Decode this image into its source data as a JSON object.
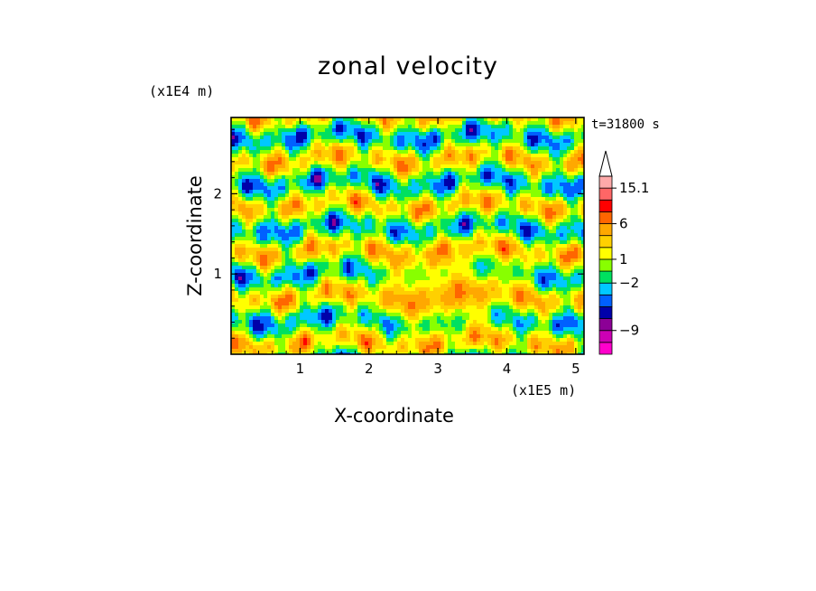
{
  "chart_data": {
    "type": "heatmap",
    "title": "zonal velocity",
    "xlabel": "X-coordinate",
    "ylabel": "Z-coordinate",
    "x_unit": "(x1E5 m)",
    "y_unit": "(x1E4 m)",
    "time_label": "t=31800 s",
    "xlim": [
      0,
      5.12
    ],
    "ylim": [
      0,
      2.95
    ],
    "x_ticks": [
      "1",
      "2",
      "3",
      "4",
      "5"
    ],
    "y_ticks": [
      "1",
      "2"
    ],
    "colorbar": {
      "labels": [
        {
          "text": "15.1",
          "value": 15.1
        },
        {
          "text": "6",
          "value": 6
        },
        {
          "text": "1",
          "value": 1
        },
        {
          "text": "−2",
          "value": -2
        },
        {
          "text": "−9",
          "value": -9
        }
      ],
      "bands": [
        {
          "color": "#ff00cc"
        },
        {
          "color": "#cc00b4"
        },
        {
          "color": "#8c0096"
        },
        {
          "color": "#0000aa"
        },
        {
          "color": "#0060ff"
        },
        {
          "color": "#00c8ff"
        },
        {
          "color": "#00e060"
        },
        {
          "color": "#88ff00"
        },
        {
          "color": "#ffff00"
        },
        {
          "color": "#ffd000"
        },
        {
          "color": "#ffa800"
        },
        {
          "color": "#ff6600"
        },
        {
          "color": "#ff0000"
        },
        {
          "color": "#ff6666"
        },
        {
          "color": "#ffaaaa"
        }
      ]
    }
  }
}
